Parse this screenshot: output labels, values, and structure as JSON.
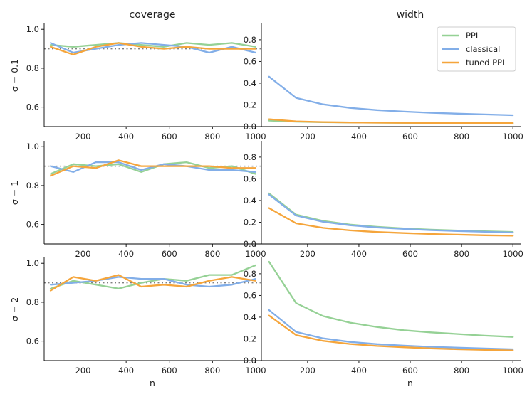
{
  "chart_data": {
    "type": "line",
    "x": [
      50,
      155,
      260,
      365,
      470,
      575,
      680,
      785,
      890,
      1000
    ],
    "xlabel": "n",
    "column_titles": [
      "coverage",
      "width"
    ],
    "row_labels": [
      "σ = 0.1",
      "σ = 1",
      "σ = 2"
    ],
    "target_coverage": 0.9,
    "colors": {
      "PPI": "#95d195",
      "classical": "#82aee8",
      "tuned PPI": "#f5a53b",
      "reference": "#808080"
    },
    "legend": {
      "position": "top-right",
      "entries": [
        {
          "name": "PPI",
          "color": "#95d195"
        },
        {
          "name": "classical",
          "color": "#82aee8"
        },
        {
          "name": "tuned PPI",
          "color": "#f5a53b"
        }
      ]
    },
    "x_axis": {
      "range": [
        20,
        1030
      ],
      "ticks": [
        200,
        400,
        600,
        800,
        1000
      ],
      "tick_labels": [
        "200",
        "400",
        "600",
        "800",
        "1000"
      ]
    },
    "coverage_axis": {
      "range": [
        0.5,
        1.03
      ],
      "ticks": [
        0.6,
        0.8,
        1.0
      ],
      "tick_labels": [
        "0.6",
        "0.8",
        "1.0"
      ]
    },
    "width_axis": {
      "range": [
        0,
        0.95
      ],
      "ticks": [
        0.0,
        0.2,
        0.4,
        0.6,
        0.8
      ],
      "tick_labels": [
        "0.0",
        "0.2",
        "0.4",
        "0.6",
        "0.8"
      ]
    },
    "panels": [
      {
        "column": "coverage",
        "row": "σ = 0.1",
        "series": [
          {
            "name": "PPI",
            "values": [
              0.92,
              0.91,
              0.92,
              0.93,
              0.92,
              0.91,
              0.93,
              0.92,
              0.93,
              0.91
            ]
          },
          {
            "name": "classical",
            "values": [
              0.93,
              0.88,
              0.9,
              0.92,
              0.93,
              0.92,
              0.91,
              0.88,
              0.91,
              0.88
            ]
          },
          {
            "name": "tuned PPI",
            "values": [
              0.91,
              0.87,
              0.91,
              0.93,
              0.91,
              0.9,
              0.91,
              0.9,
              0.9,
              0.9
            ]
          }
        ]
      },
      {
        "column": "width",
        "row": "σ = 0.1",
        "series": [
          {
            "name": "PPI",
            "values": [
              0.055,
              0.045,
              0.04,
              0.038,
              0.036,
              0.035,
              0.034,
              0.033,
              0.032,
              0.032
            ]
          },
          {
            "name": "classical",
            "values": [
              0.46,
              0.265,
              0.205,
              0.172,
              0.152,
              0.138,
              0.127,
              0.119,
              0.112,
              0.105
            ]
          },
          {
            "name": "tuned PPI",
            "values": [
              0.068,
              0.048,
              0.042,
              0.038,
              0.036,
              0.035,
              0.034,
              0.033,
              0.032,
              0.032
            ]
          }
        ]
      },
      {
        "column": "coverage",
        "row": "σ = 1",
        "series": [
          {
            "name": "PPI",
            "values": [
              0.86,
              0.91,
              0.9,
              0.91,
              0.87,
              0.91,
              0.92,
              0.89,
              0.9,
              0.86
            ]
          },
          {
            "name": "classical",
            "values": [
              0.9,
              0.87,
              0.92,
              0.92,
              0.88,
              0.91,
              0.9,
              0.88,
              0.88,
              0.87
            ]
          },
          {
            "name": "tuned PPI",
            "values": [
              0.85,
              0.9,
              0.89,
              0.93,
              0.9,
              0.9,
              0.9,
              0.9,
              0.89,
              0.89
            ]
          }
        ]
      },
      {
        "column": "width",
        "row": "σ = 1",
        "series": [
          {
            "name": "PPI",
            "values": [
              0.465,
              0.27,
              0.212,
              0.178,
              0.158,
              0.143,
              0.132,
              0.124,
              0.117,
              0.11
            ]
          },
          {
            "name": "classical",
            "values": [
              0.455,
              0.262,
              0.204,
              0.172,
              0.152,
              0.138,
              0.127,
              0.119,
              0.112,
              0.105
            ]
          },
          {
            "name": "tuned PPI",
            "values": [
              0.33,
              0.19,
              0.148,
              0.125,
              0.11,
              0.1,
              0.092,
              0.086,
              0.08,
              0.076
            ]
          }
        ]
      },
      {
        "column": "coverage",
        "row": "σ = 2",
        "series": [
          {
            "name": "PPI",
            "values": [
              0.87,
              0.91,
              0.89,
              0.87,
              0.9,
              0.92,
              0.91,
              0.94,
              0.94,
              0.99
            ]
          },
          {
            "name": "classical",
            "values": [
              0.89,
              0.9,
              0.91,
              0.93,
              0.92,
              0.92,
              0.89,
              0.88,
              0.89,
              0.92
            ]
          },
          {
            "name": "tuned PPI",
            "values": [
              0.86,
              0.93,
              0.91,
              0.94,
              0.88,
              0.89,
              0.88,
              0.91,
              0.93,
              0.91
            ]
          }
        ]
      },
      {
        "column": "width",
        "row": "σ = 2",
        "series": [
          {
            "name": "PPI",
            "values": [
              0.91,
              0.53,
              0.41,
              0.35,
              0.31,
              0.28,
              0.26,
              0.245,
              0.23,
              0.218
            ]
          },
          {
            "name": "classical",
            "values": [
              0.465,
              0.265,
              0.205,
              0.172,
              0.152,
              0.138,
              0.127,
              0.119,
              0.112,
              0.105
            ]
          },
          {
            "name": "tuned PPI",
            "values": [
              0.415,
              0.235,
              0.182,
              0.153,
              0.135,
              0.123,
              0.113,
              0.105,
              0.099,
              0.094
            ]
          }
        ]
      }
    ]
  }
}
